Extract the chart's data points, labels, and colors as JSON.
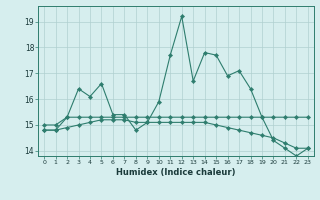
{
  "xlabel": "Humidex (Indice chaleur)",
  "x": [
    0,
    1,
    2,
    3,
    4,
    5,
    6,
    7,
    8,
    9,
    10,
    11,
    12,
    13,
    14,
    15,
    16,
    17,
    18,
    19,
    20,
    21,
    22,
    23
  ],
  "line1": [
    14.8,
    14.8,
    15.3,
    16.4,
    16.1,
    16.6,
    15.4,
    15.4,
    14.8,
    15.1,
    15.9,
    17.7,
    19.2,
    16.7,
    17.8,
    17.7,
    16.9,
    17.1,
    16.4,
    15.3,
    14.4,
    14.1,
    13.8,
    14.1
  ],
  "line2": [
    15.0,
    15.0,
    15.3,
    15.3,
    15.3,
    15.3,
    15.3,
    15.3,
    15.3,
    15.3,
    15.3,
    15.3,
    15.3,
    15.3,
    15.3,
    15.3,
    15.3,
    15.3,
    15.3,
    15.3,
    15.3,
    15.3,
    15.3,
    15.3
  ],
  "line3": [
    14.8,
    14.8,
    14.9,
    15.0,
    15.1,
    15.2,
    15.2,
    15.2,
    15.1,
    15.1,
    15.1,
    15.1,
    15.1,
    15.1,
    15.1,
    15.0,
    14.9,
    14.8,
    14.7,
    14.6,
    14.5,
    14.3,
    14.1,
    14.1
  ],
  "color": "#2e7d6e",
  "bg_color": "#d6eeee",
  "grid_color": "#b0d0d0",
  "ylim": [
    13.8,
    19.6
  ],
  "yticks": [
    14,
    15,
    16,
    17,
    18,
    19
  ]
}
